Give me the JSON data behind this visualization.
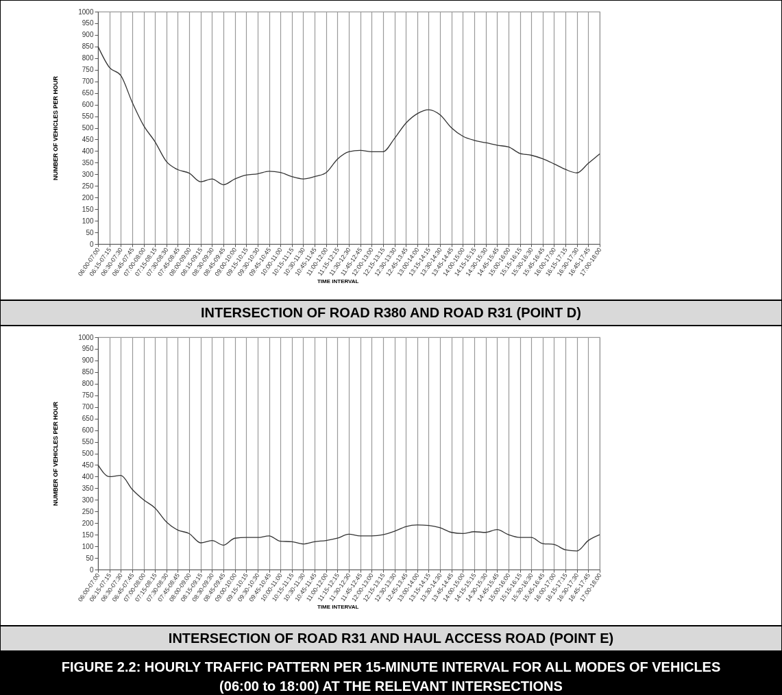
{
  "chart_data": [
    {
      "type": "line",
      "title": "INTERSECTION OF ROAD R380 AND ROAD R31 (POINT D)",
      "xlabel": "TIME INTERVAL",
      "ylabel": "NUMBER OF VEHICLES PER HOUR",
      "categories": [
        "06:00-07:00",
        "06:15-07:15",
        "06:30-07:30",
        "06:45-07:45",
        "07:00-08:00",
        "07:15-08:15",
        "07:30-08:30",
        "07:45-08:45",
        "08:00-09:00",
        "08:15-09:15",
        "08:30-09:30",
        "08:45-09:45",
        "09:00-10:00",
        "09:15-10:15",
        "09:30-10:30",
        "09:45-10:45",
        "10:00-11:00",
        "10:15-11:15",
        "10:30-11:30",
        "10:45-11:45",
        "11:00-12:00",
        "11:15-12:15",
        "11:30-12:30",
        "11:45-12:45",
        "12:00-13:00",
        "12:15-13:15",
        "12:30-13:30",
        "12:45-13:45",
        "13:00-14:00",
        "13:15-14:15",
        "13:30-14:30",
        "13:45-14:45",
        "14:00-15:00",
        "14:15-15:15",
        "14:30-15:30",
        "14:45-15:45",
        "15:00-16:00",
        "15:15-16:15",
        "15:30-16:30",
        "15:45-16:45",
        "16:00-17:00",
        "16:15-17:15",
        "16:30-17:30",
        "16:45-17:45",
        "17:00-18:00"
      ],
      "series": [
        {
          "color": "#333333",
          "values": [
            850,
            760,
            725,
            610,
            510,
            440,
            355,
            320,
            305,
            268,
            280,
            255,
            280,
            297,
            302,
            313,
            308,
            290,
            280,
            290,
            307,
            365,
            397,
            403,
            397,
            397,
            454,
            520,
            561,
            578,
            556,
            500,
            464,
            446,
            436,
            425,
            418,
            390,
            382,
            367,
            345,
            321,
            306,
            347,
            388
          ]
        }
      ],
      "ylim": [
        0,
        1000
      ],
      "yticks": [
        0,
        50,
        100,
        150,
        200,
        250,
        300,
        350,
        400,
        450,
        500,
        550,
        600,
        650,
        700,
        750,
        800,
        850,
        900,
        950,
        1000
      ],
      "grid": "x"
    },
    {
      "type": "line",
      "title": "INTERSECTION OF ROAD R31 AND HAUL ACCESS ROAD (POINT E)",
      "xlabel": "TIME INTERVAL",
      "ylabel": "NUMBER OF VEHICLES PER HOUR",
      "categories": [
        "06:00-07:00",
        "06:15-07:15",
        "06:30-07:30",
        "06:45-07:45",
        "07:00-08:00",
        "07:15-08:15",
        "07:30-08:30",
        "07:45-08:45",
        "08:00-09:00",
        "08:15-09:15",
        "08:30-09:30",
        "08:45-09:45",
        "09:00-10:00",
        "09:15-10:15",
        "09:30-10:30",
        "09:45-10:45",
        "10:00-11:00",
        "10:15-11:15",
        "10:30-11:30",
        "10:45-11:45",
        "11:00-12:00",
        "11:15-12:15",
        "11:30-12:30",
        "11:45-12:45",
        "12:00-13:00",
        "12:15-13:15",
        "12:30-13:30",
        "12:45-13:45",
        "13:00-14:00",
        "13:15-14:15",
        "13:30-14:30",
        "13:45-14:45",
        "14:00-15:00",
        "14:15-15:15",
        "14:30-15:30",
        "14:45-15:45",
        "15:00-16:00",
        "15:15-16:15",
        "15:30-16:30",
        "15:45-16:45",
        "16:00-17:00",
        "16:15-17:15",
        "16:30-17:30",
        "16:45-17:45",
        "17:00-18:00"
      ],
      "series": [
        {
          "color": "#333333",
          "values": [
            450,
            400,
            405,
            345,
            300,
            265,
            205,
            170,
            155,
            115,
            125,
            105,
            135,
            138,
            138,
            145,
            122,
            120,
            110,
            120,
            125,
            135,
            152,
            145,
            145,
            150,
            165,
            185,
            192,
            190,
            180,
            160,
            155,
            163,
            160,
            172,
            150,
            138,
            138,
            112,
            108,
            85,
            80,
            125,
            150
          ]
        }
      ],
      "ylim": [
        0,
        1000
      ],
      "yticks": [
        0,
        50,
        100,
        150,
        200,
        250,
        300,
        350,
        400,
        450,
        500,
        550,
        600,
        650,
        700,
        750,
        800,
        850,
        900,
        950,
        1000
      ],
      "grid": "x",
      "annotations": [
        "FIGURE 2.2: HOURLY TRAFFIC PATTERN PER 15-MINUTE INTERVAL FOR ALL MODES OF VEHICLES (06:00 to 18:00) AT THE RELEVANT INTERSECTIONS"
      ]
    }
  ]
}
